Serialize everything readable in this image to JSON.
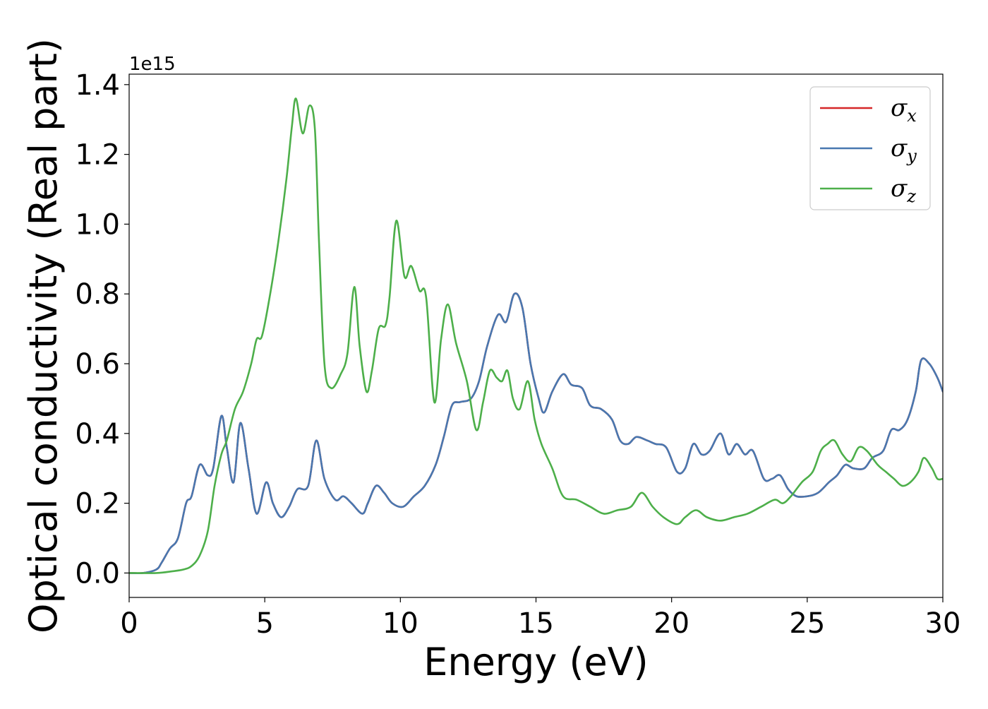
{
  "chart_data": {
    "type": "line",
    "title": "",
    "xlabel": "Energy (eV)",
    "ylabel": "Optical conductivity (Real part)",
    "y_offset_label": "1e15",
    "xlim": [
      0,
      30
    ],
    "ylim": [
      -0.07,
      1.43
    ],
    "x_ticks": [
      0,
      5,
      10,
      15,
      20,
      25,
      30
    ],
    "y_ticks": [
      0.0,
      0.2,
      0.4,
      0.6,
      0.8,
      1.0,
      1.2,
      1.4
    ],
    "x_tick_labels": [
      "0",
      "5",
      "10",
      "15",
      "20",
      "25",
      "30"
    ],
    "y_tick_labels": [
      "0.0",
      "0.2",
      "0.4",
      "0.6",
      "0.8",
      "1.0",
      "1.2",
      "1.4"
    ],
    "grid": false,
    "legend_position": "top-right",
    "legend": [
      {
        "symbol": "σ",
        "sub": "x",
        "color": "#d62728"
      },
      {
        "symbol": "σ",
        "sub": "y",
        "color": "#4878b0"
      },
      {
        "symbol": "σ",
        "sub": "z",
        "color": "#4daf4a"
      }
    ],
    "series": [
      {
        "name": "σx",
        "color": "#d62728",
        "x": [
          0,
          0.5,
          1.0,
          1.2,
          1.5,
          1.8,
          2.1,
          2.3,
          2.6,
          2.9,
          3.1,
          3.4,
          3.6,
          3.85,
          4.1,
          4.4,
          4.7,
          5.05,
          5.3,
          5.6,
          5.9,
          6.2,
          6.6,
          6.9,
          7.2,
          7.6,
          7.9,
          8.2,
          8.6,
          8.8,
          9.1,
          9.4,
          9.7,
          10.1,
          10.5,
          10.9,
          11.3,
          11.6,
          11.9,
          12.2,
          12.6,
          12.9,
          13.2,
          13.6,
          13.9,
          14.2,
          14.5,
          14.8,
          15.1,
          15.3,
          15.6,
          16.0,
          16.3,
          16.7,
          17.0,
          17.4,
          17.8,
          18.1,
          18.4,
          18.7,
          19.1,
          19.4,
          19.8,
          20.2,
          20.5,
          20.8,
          21.1,
          21.4,
          21.8,
          22.1,
          22.4,
          22.7,
          23.0,
          23.4,
          23.7,
          24.0,
          24.3,
          24.6,
          25.0,
          25.4,
          25.8,
          26.1,
          26.4,
          26.7,
          27.1,
          27.4,
          27.8,
          28.1,
          28.4,
          28.7,
          29.0,
          29.2,
          29.5,
          29.8,
          30.0
        ],
        "y": [
          0.0,
          0.0,
          0.01,
          0.03,
          0.07,
          0.1,
          0.2,
          0.22,
          0.31,
          0.28,
          0.3,
          0.45,
          0.36,
          0.26,
          0.43,
          0.3,
          0.17,
          0.26,
          0.2,
          0.16,
          0.19,
          0.24,
          0.25,
          0.38,
          0.27,
          0.21,
          0.22,
          0.2,
          0.17,
          0.2,
          0.25,
          0.23,
          0.2,
          0.19,
          0.22,
          0.25,
          0.31,
          0.39,
          0.48,
          0.49,
          0.5,
          0.55,
          0.65,
          0.74,
          0.72,
          0.8,
          0.76,
          0.6,
          0.5,
          0.46,
          0.52,
          0.57,
          0.54,
          0.53,
          0.48,
          0.47,
          0.44,
          0.38,
          0.37,
          0.39,
          0.38,
          0.37,
          0.36,
          0.29,
          0.3,
          0.37,
          0.34,
          0.35,
          0.4,
          0.34,
          0.37,
          0.34,
          0.35,
          0.27,
          0.27,
          0.28,
          0.24,
          0.22,
          0.22,
          0.23,
          0.26,
          0.28,
          0.31,
          0.3,
          0.3,
          0.33,
          0.35,
          0.41,
          0.41,
          0.44,
          0.52,
          0.61,
          0.6,
          0.56,
          0.52
        ]
      },
      {
        "name": "σy",
        "color": "#4878b0",
        "x": [
          0,
          0.5,
          1.0,
          1.2,
          1.5,
          1.8,
          2.1,
          2.3,
          2.6,
          2.9,
          3.1,
          3.4,
          3.6,
          3.85,
          4.1,
          4.4,
          4.7,
          5.05,
          5.3,
          5.6,
          5.9,
          6.2,
          6.6,
          6.9,
          7.2,
          7.6,
          7.9,
          8.2,
          8.6,
          8.8,
          9.1,
          9.4,
          9.7,
          10.1,
          10.5,
          10.9,
          11.3,
          11.6,
          11.9,
          12.2,
          12.6,
          12.9,
          13.2,
          13.6,
          13.9,
          14.2,
          14.5,
          14.8,
          15.1,
          15.3,
          15.6,
          16.0,
          16.3,
          16.7,
          17.0,
          17.4,
          17.8,
          18.1,
          18.4,
          18.7,
          19.1,
          19.4,
          19.8,
          20.2,
          20.5,
          20.8,
          21.1,
          21.4,
          21.8,
          22.1,
          22.4,
          22.7,
          23.0,
          23.4,
          23.7,
          24.0,
          24.3,
          24.6,
          25.0,
          25.4,
          25.8,
          26.1,
          26.4,
          26.7,
          27.1,
          27.4,
          27.8,
          28.1,
          28.4,
          28.7,
          29.0,
          29.2,
          29.5,
          29.8,
          30.0
        ],
        "y": [
          0.0,
          0.0,
          0.01,
          0.03,
          0.07,
          0.1,
          0.2,
          0.22,
          0.31,
          0.28,
          0.3,
          0.45,
          0.36,
          0.26,
          0.43,
          0.3,
          0.17,
          0.26,
          0.2,
          0.16,
          0.19,
          0.24,
          0.25,
          0.38,
          0.27,
          0.21,
          0.22,
          0.2,
          0.17,
          0.2,
          0.25,
          0.23,
          0.2,
          0.19,
          0.22,
          0.25,
          0.31,
          0.39,
          0.48,
          0.49,
          0.5,
          0.55,
          0.65,
          0.74,
          0.72,
          0.8,
          0.76,
          0.6,
          0.5,
          0.46,
          0.52,
          0.57,
          0.54,
          0.53,
          0.48,
          0.47,
          0.44,
          0.38,
          0.37,
          0.39,
          0.38,
          0.37,
          0.36,
          0.29,
          0.3,
          0.37,
          0.34,
          0.35,
          0.4,
          0.34,
          0.37,
          0.34,
          0.35,
          0.27,
          0.27,
          0.28,
          0.24,
          0.22,
          0.22,
          0.23,
          0.26,
          0.28,
          0.31,
          0.3,
          0.3,
          0.33,
          0.35,
          0.41,
          0.41,
          0.44,
          0.52,
          0.61,
          0.6,
          0.56,
          0.52
        ]
      },
      {
        "name": "σz",
        "color": "#4daf4a",
        "x": [
          0,
          1.0,
          1.6,
          2.0,
          2.3,
          2.6,
          2.9,
          3.15,
          3.4,
          3.6,
          3.9,
          4.2,
          4.5,
          4.7,
          4.9,
          5.2,
          5.5,
          5.8,
          6.0,
          6.15,
          6.4,
          6.65,
          6.85,
          7.0,
          7.2,
          7.45,
          7.8,
          8.05,
          8.3,
          8.5,
          8.75,
          8.95,
          9.2,
          9.45,
          9.6,
          9.85,
          10.15,
          10.4,
          10.7,
          10.95,
          11.25,
          11.5,
          11.75,
          12.05,
          12.45,
          12.8,
          13.05,
          13.3,
          13.55,
          13.75,
          13.95,
          14.15,
          14.4,
          14.7,
          14.95,
          15.2,
          15.6,
          16.0,
          16.5,
          17.0,
          17.5,
          18.0,
          18.5,
          18.9,
          19.3,
          19.7,
          20.2,
          20.5,
          20.9,
          21.3,
          21.8,
          22.3,
          22.8,
          23.3,
          23.8,
          24.1,
          24.4,
          24.8,
          25.2,
          25.5,
          25.75,
          26.0,
          26.3,
          26.6,
          26.9,
          27.2,
          27.6,
          27.9,
          28.2,
          28.5,
          28.8,
          29.1,
          29.3,
          29.6,
          29.8,
          30.0
        ],
        "y": [
          0.0,
          0.0,
          0.005,
          0.01,
          0.02,
          0.05,
          0.12,
          0.25,
          0.34,
          0.38,
          0.47,
          0.52,
          0.6,
          0.67,
          0.68,
          0.8,
          0.95,
          1.13,
          1.28,
          1.36,
          1.26,
          1.34,
          1.27,
          0.95,
          0.6,
          0.53,
          0.57,
          0.63,
          0.82,
          0.65,
          0.52,
          0.58,
          0.7,
          0.71,
          0.79,
          1.01,
          0.85,
          0.88,
          0.81,
          0.79,
          0.49,
          0.67,
          0.77,
          0.66,
          0.55,
          0.41,
          0.49,
          0.58,
          0.56,
          0.55,
          0.58,
          0.5,
          0.47,
          0.55,
          0.44,
          0.37,
          0.3,
          0.22,
          0.21,
          0.19,
          0.17,
          0.18,
          0.19,
          0.23,
          0.19,
          0.16,
          0.14,
          0.16,
          0.18,
          0.16,
          0.15,
          0.16,
          0.17,
          0.19,
          0.21,
          0.2,
          0.22,
          0.26,
          0.29,
          0.35,
          0.37,
          0.38,
          0.34,
          0.32,
          0.36,
          0.35,
          0.31,
          0.29,
          0.27,
          0.25,
          0.26,
          0.29,
          0.33,
          0.3,
          0.27,
          0.27
        ]
      }
    ]
  }
}
